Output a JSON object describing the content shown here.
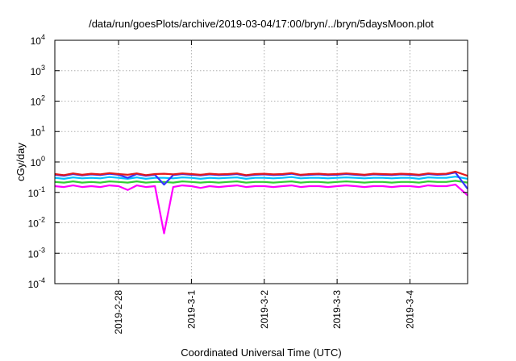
{
  "chart_data": {
    "type": "line",
    "title": "/data/run/goesPlots/archive/2019-03-04/17:00/bryn/../bryn/5daysMoon.plot",
    "xlabel": "Coordinated Universal Time (UTC)",
    "ylabel": "cGy/day",
    "yscale": "log",
    "ylim": [
      0.0001,
      10000
    ],
    "xlim": [
      "2019-02-27 03:00",
      "2019-03-04 19:00"
    ],
    "grid": true,
    "legend": "none",
    "y_ticks": [
      {
        "base": "10",
        "exp": "-4"
      },
      {
        "base": "10",
        "exp": "-3"
      },
      {
        "base": "10",
        "exp": "-2"
      },
      {
        "base": "10",
        "exp": "-1"
      },
      {
        "base": "10",
        "exp": "0"
      },
      {
        "base": "10",
        "exp": "1"
      },
      {
        "base": "10",
        "exp": "2"
      },
      {
        "base": "10",
        "exp": "3"
      },
      {
        "base": "10",
        "exp": "4"
      }
    ],
    "x_ticks": [
      {
        "label": "2019-2-28",
        "date": "2019-02-28"
      },
      {
        "label": "2019-3-1",
        "date": "2019-03-01"
      },
      {
        "label": "2019-3-2",
        "date": "2019-03-02"
      },
      {
        "label": "2019-3-3",
        "date": "2019-03-03"
      },
      {
        "label": "2019-3-4",
        "date": "2019-03-04"
      }
    ],
    "x": [
      "2019-02-27 03:00",
      "2019-02-27 06:00",
      "2019-02-27 09:00",
      "2019-02-27 12:00",
      "2019-02-27 15:00",
      "2019-02-27 18:00",
      "2019-02-27 21:00",
      "2019-02-28 00:00",
      "2019-02-28 03:00",
      "2019-02-28 06:00",
      "2019-02-28 09:00",
      "2019-02-28 12:00",
      "2019-02-28 15:00",
      "2019-02-28 18:00",
      "2019-02-28 21:00",
      "2019-03-01 00:00",
      "2019-03-01 03:00",
      "2019-03-01 06:00",
      "2019-03-01 09:00",
      "2019-03-01 12:00",
      "2019-03-01 15:00",
      "2019-03-01 18:00",
      "2019-03-01 21:00",
      "2019-03-02 00:00",
      "2019-03-02 03:00",
      "2019-03-02 06:00",
      "2019-03-02 09:00",
      "2019-03-02 12:00",
      "2019-03-02 15:00",
      "2019-03-02 18:00",
      "2019-03-02 21:00",
      "2019-03-03 00:00",
      "2019-03-03 03:00",
      "2019-03-03 06:00",
      "2019-03-03 09:00",
      "2019-03-03 12:00",
      "2019-03-03 15:00",
      "2019-03-03 18:00",
      "2019-03-03 21:00",
      "2019-03-04 00:00",
      "2019-03-04 03:00",
      "2019-03-04 06:00",
      "2019-03-04 09:00",
      "2019-03-04 12:00",
      "2019-03-04 15:00",
      "2019-03-04 19:00"
    ],
    "series": [
      {
        "color": "#e41a1c",
        "values": [
          0.4,
          0.37,
          0.42,
          0.38,
          0.41,
          0.39,
          0.43,
          0.4,
          0.38,
          0.42,
          0.37,
          0.4,
          0.41,
          0.39,
          0.42,
          0.4,
          0.38,
          0.41,
          0.39,
          0.4,
          0.42,
          0.37,
          0.4,
          0.41,
          0.39,
          0.4,
          0.43,
          0.38,
          0.4,
          0.41,
          0.39,
          0.4,
          0.42,
          0.4,
          0.38,
          0.41,
          0.4,
          0.39,
          0.41,
          0.4,
          0.38,
          0.42,
          0.4,
          0.41,
          0.48,
          0.35
        ]
      },
      {
        "color": "#3333ff",
        "values": [
          0.38,
          0.35,
          0.4,
          0.36,
          0.39,
          0.37,
          0.41,
          0.38,
          0.3,
          0.4,
          0.35,
          0.38,
          0.18,
          0.37,
          0.4,
          0.38,
          0.36,
          0.39,
          0.37,
          0.38,
          0.4,
          0.35,
          0.38,
          0.39,
          0.37,
          0.38,
          0.41,
          0.36,
          0.38,
          0.39,
          0.37,
          0.38,
          0.4,
          0.38,
          0.36,
          0.39,
          0.38,
          0.37,
          0.39,
          0.38,
          0.36,
          0.4,
          0.38,
          0.39,
          0.45,
          0.13
        ]
      },
      {
        "color": "#00bfff",
        "values": [
          0.3,
          0.28,
          0.31,
          0.29,
          0.3,
          0.29,
          0.32,
          0.3,
          0.28,
          0.31,
          0.28,
          0.3,
          0.3,
          0.29,
          0.31,
          0.3,
          0.28,
          0.3,
          0.29,
          0.3,
          0.31,
          0.28,
          0.3,
          0.3,
          0.29,
          0.3,
          0.32,
          0.29,
          0.3,
          0.3,
          0.29,
          0.3,
          0.31,
          0.3,
          0.29,
          0.3,
          0.3,
          0.29,
          0.3,
          0.3,
          0.28,
          0.31,
          0.3,
          0.3,
          0.33,
          0.28
        ]
      },
      {
        "color": "#33cc33",
        "values": [
          0.22,
          0.21,
          0.23,
          0.21,
          0.22,
          0.21,
          0.23,
          0.22,
          0.21,
          0.23,
          0.21,
          0.22,
          0.22,
          0.21,
          0.23,
          0.22,
          0.21,
          0.22,
          0.21,
          0.22,
          0.23,
          0.21,
          0.22,
          0.22,
          0.21,
          0.22,
          0.23,
          0.21,
          0.22,
          0.22,
          0.21,
          0.22,
          0.23,
          0.22,
          0.21,
          0.22,
          0.22,
          0.21,
          0.22,
          0.22,
          0.21,
          0.23,
          0.22,
          0.22,
          0.24,
          0.21
        ]
      },
      {
        "color": "#ff00ff",
        "values": [
          0.16,
          0.15,
          0.17,
          0.15,
          0.16,
          0.15,
          0.17,
          0.16,
          0.12,
          0.17,
          0.15,
          0.16,
          0.0045,
          0.15,
          0.17,
          0.16,
          0.14,
          0.16,
          0.15,
          0.16,
          0.17,
          0.15,
          0.16,
          0.16,
          0.15,
          0.16,
          0.17,
          0.15,
          0.16,
          0.16,
          0.15,
          0.16,
          0.17,
          0.16,
          0.15,
          0.16,
          0.16,
          0.15,
          0.16,
          0.16,
          0.15,
          0.17,
          0.16,
          0.16,
          0.18,
          0.08
        ]
      }
    ]
  }
}
